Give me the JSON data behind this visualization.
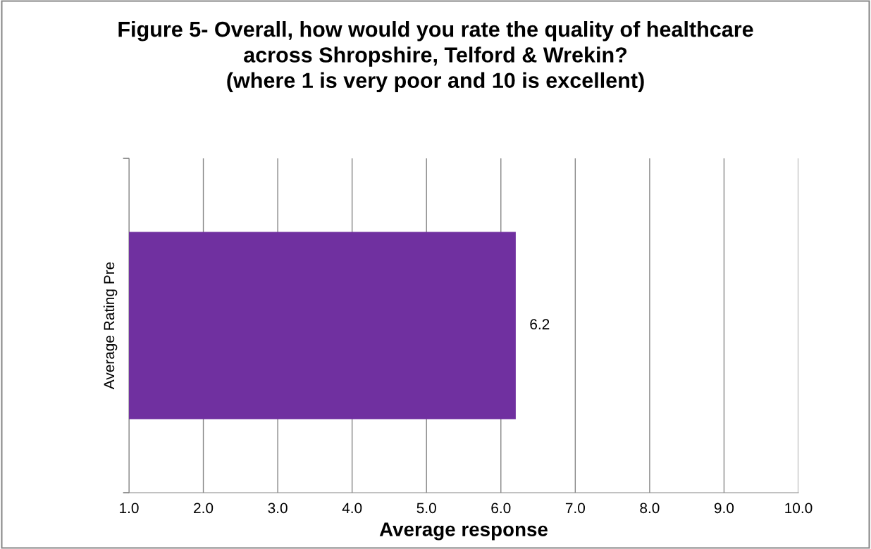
{
  "chart_data": {
    "type": "bar",
    "orientation": "horizontal",
    "title": "Figure 5- Overall, how would you rate the quality of healthcare\nacross Shropshire, Telford & Wrekin?\n(where 1 is very poor and 10 is excellent)",
    "xlabel": "Average response",
    "categories": [
      "Average Rating Pre"
    ],
    "values": [
      6.2
    ],
    "color": "#7030a0",
    "xlim": [
      1,
      10
    ],
    "xticks": [
      {
        "value": 1,
        "label": "1.0"
      },
      {
        "value": 2,
        "label": "2.0"
      },
      {
        "value": 3,
        "label": "3.0"
      },
      {
        "value": 4,
        "label": "4.0"
      },
      {
        "value": 5,
        "label": "5.0"
      },
      {
        "value": 6,
        "label": "6.0"
      },
      {
        "value": 7,
        "label": "7.0"
      },
      {
        "value": 8,
        "label": "8.0"
      },
      {
        "value": 9,
        "label": "9.0"
      },
      {
        "value": 10,
        "label": "10.0"
      }
    ],
    "grid": "x",
    "data_labels": true
  }
}
